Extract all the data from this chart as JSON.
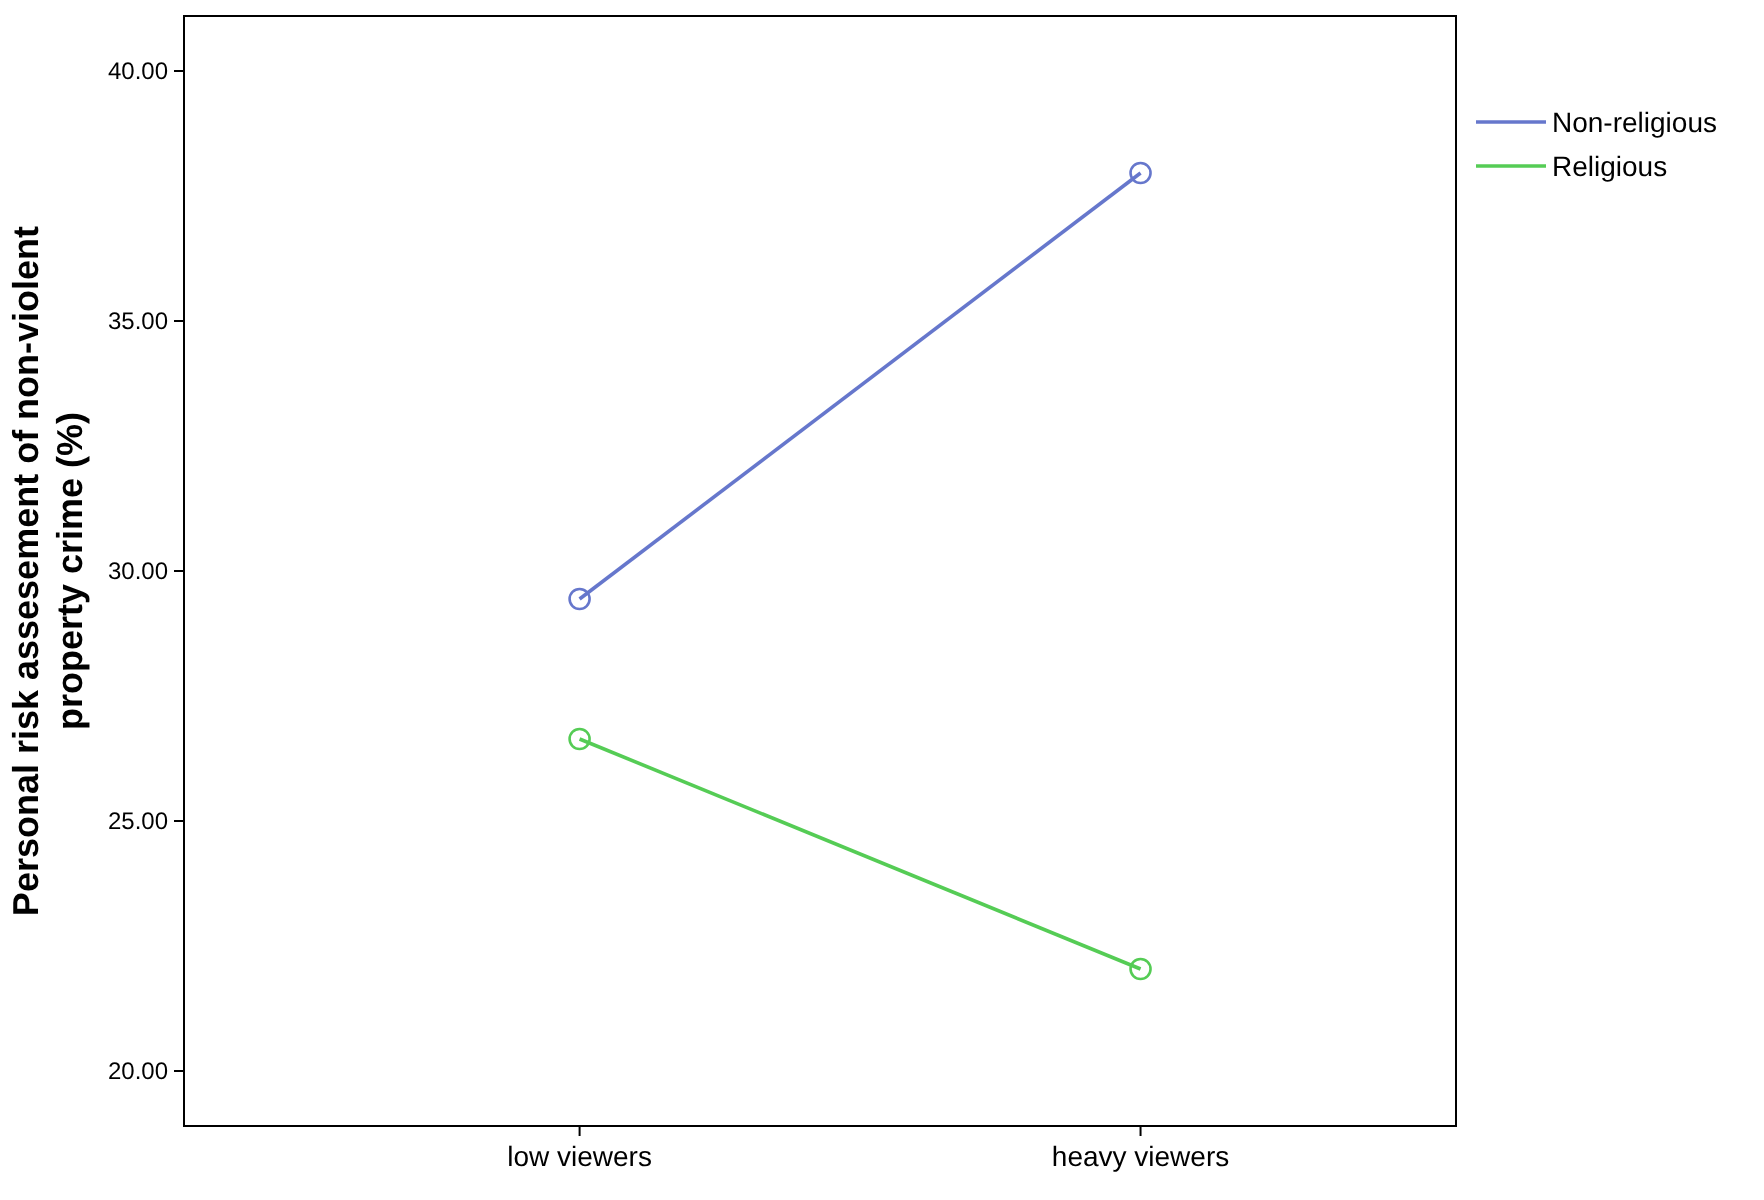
{
  "chart_data": {
    "type": "line",
    "ylabel": "Personal risk assesement of non-violent\nproperty crime (%)",
    "categories": [
      "low viewers",
      "heavy viewers"
    ],
    "series": [
      {
        "name": "Non-religious",
        "color": "#6677cc",
        "values": [
          29.44,
          37.96
        ]
      },
      {
        "name": "Religious",
        "color": "#55cc55",
        "values": [
          26.64,
          22.04
        ]
      }
    ],
    "ylim": [
      18.9,
      41.1
    ],
    "yticks": [
      {
        "value": 20,
        "label": "20.00"
      },
      {
        "value": 25,
        "label": "25.00"
      },
      {
        "value": 30,
        "label": "30.00"
      },
      {
        "value": 35,
        "label": "35.00"
      },
      {
        "value": 40,
        "label": "40.00"
      }
    ],
    "legend": "top right",
    "marker": "circle",
    "line_style": "solid",
    "grid": false
  }
}
